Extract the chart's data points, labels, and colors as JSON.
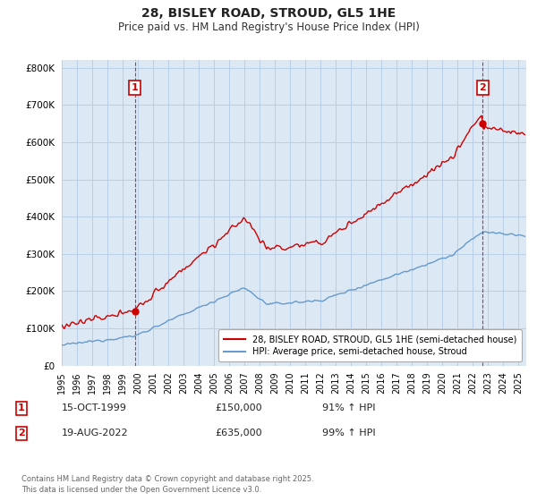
{
  "title": "28, BISLEY ROAD, STROUD, GL5 1HE",
  "subtitle": "Price paid vs. HM Land Registry's House Price Index (HPI)",
  "ylim": [
    0,
    820000
  ],
  "yticks": [
    0,
    100000,
    200000,
    300000,
    400000,
    500000,
    600000,
    700000,
    800000
  ],
  "red_color": "#cc0000",
  "blue_color": "#6699cc",
  "bg_color": "#dce9f5",
  "fig_bg": "#ffffff",
  "grid_color": "#b8cfe8",
  "legend_red": "28, BISLEY ROAD, STROUD, GL5 1HE (semi-detached house)",
  "legend_blue": "HPI: Average price, semi-detached house, Stroud",
  "footnote": "Contains HM Land Registry data © Crown copyright and database right 2025.\nThis data is licensed under the Open Government Licence v3.0.",
  "table_row1": [
    "1",
    "15-OCT-1999",
    "£150,000",
    "91% ↑ HPI"
  ],
  "table_row2": [
    "2",
    "19-AUG-2022",
    "£635,000",
    "99% ↑ HPI"
  ],
  "sale1_year": 1999.79,
  "sale1_price": 150000,
  "sale2_year": 2022.63,
  "sale2_price": 635000
}
